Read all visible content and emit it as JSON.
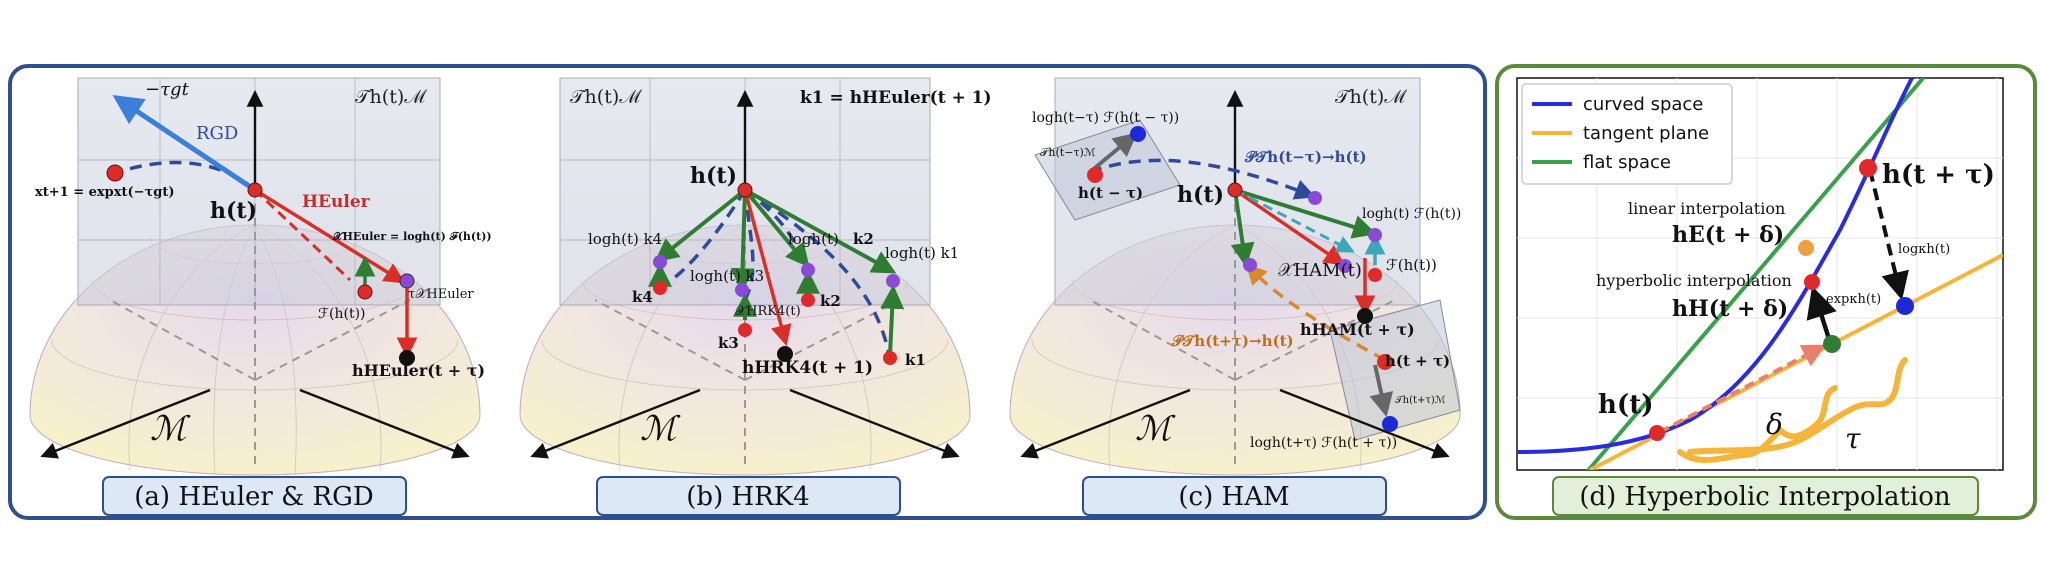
{
  "colors": {
    "frame_blue": "#2f4f8f",
    "frame_green": "#5a8a3a",
    "caption_fill_blue": "#dce8f6",
    "caption_fill_green": "#e3f0d9",
    "curved": "#2a2ae0",
    "tangent": "#f5b53a",
    "flat": "#3aa04a",
    "rgd": "#3a7fd8",
    "heuler": "#d0302a",
    "point_red": "#e02a2a",
    "point_purple": "#8a4ad8",
    "point_blue": "#1a2ad8"
  },
  "panels": [
    {
      "caption": "(a) HEuler & RGD",
      "labels": {
        "tangent_space": "𝒯h(t)ℳ",
        "manifold": "ℳ",
        "ht": "h(t)",
        "rgd": "RGD",
        "neg_tau_g": "−τgt",
        "xt1": "xt+1 = expxt(−τgt)",
        "heuler": "HEuler",
        "x_heuler": "𝒳HEuler = logh(t) ℱ(h(t))",
        "fh": "ℱ(h(t))",
        "tau_x": "τ𝒳HEuler",
        "h_heuler": "hHEuler(t + τ)"
      }
    },
    {
      "caption": "(b) HRK4",
      "labels": {
        "tangent_space": "𝒯h(t)ℳ",
        "manifold": "ℳ",
        "ht": "h(t)",
        "k1_def": "k1 = hHEuler(t + 1)",
        "log_k4": "logh(t) k4",
        "k4": "k4",
        "log_k3": "logh(t) k3",
        "k3": "k3",
        "log_k2_short": "logh(t)",
        "k2": "k2",
        "k2_lower": "k2",
        "log_k1": "logh(t) k1",
        "k1": "k1",
        "x_hrk4": "𝒳HRK4(t)",
        "h_hrk4": "hHRK4(t + 1)"
      }
    },
    {
      "caption": "(c) HAM",
      "labels": {
        "tangent_space": "𝒯h(t)ℳ",
        "manifold": "ℳ",
        "ht": "h(t)",
        "log_past": "logh(t−τ) ℱ(h(t − τ))",
        "t_past": "𝒯h(t−τ)ℳ",
        "h_past": "h(t − τ)",
        "pt_past": "𝒫𝒯h(t−τ)→h(t)",
        "log_now": "logh(t) ℱ(h(t))",
        "x_ham": "𝒳HAM(t)",
        "f_now": "ℱ(h(t))",
        "h_ham": "hHAM(t + τ)",
        "pt_future": "𝒫𝒯h(t+τ)→h(t)",
        "h_future": "h(t + τ)",
        "t_future": "𝒯h(t+τ)ℳ",
        "log_future": "logh(t+τ) ℱ(h(t + τ))"
      }
    },
    {
      "caption": "(d) Hyperbolic Interpolation",
      "legend": [
        "curved space",
        "tangent plane",
        "flat space"
      ],
      "labels": {
        "ht": "h(t)",
        "ht_tau": "h(t + τ)",
        "linear": "linear interpolation",
        "hE": "hE(t + δ)",
        "hyperbolic": "hyperbolic interpolation",
        "hH": "hH(t + δ)",
        "exp": "expκh(t)",
        "log": "logκh(t)",
        "delta": "δ",
        "tau": "τ"
      }
    }
  ]
}
